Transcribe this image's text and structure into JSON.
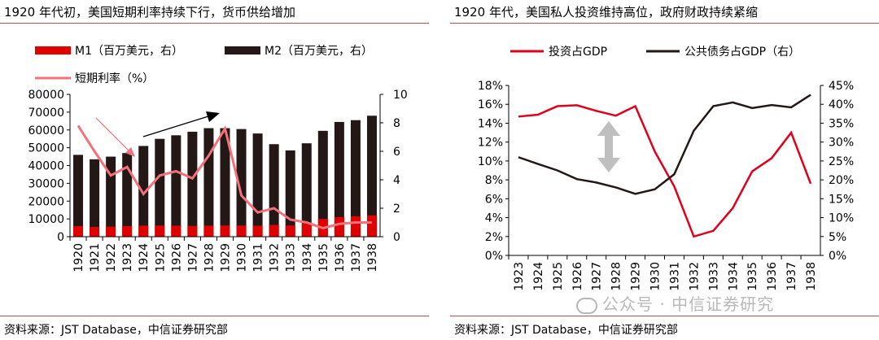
{
  "left": {
    "title": "1920 年代初，美国短期利率持续下行，货币供给增加",
    "source": "资料来源：JST Database，中信证券研究部"
  },
  "right": {
    "title": "1920 年代，美国私人投资维持高位，政府财政持续紧缩",
    "source": "资料来源：JST Database，中信证券研究部"
  },
  "watermark": "公众号 · 中信证券研究",
  "chart_data": [
    {
      "type": "bar",
      "title": "1920 年代初，美国短期利率持续下行，货币供给增加",
      "categories": [
        "1920",
        "1921",
        "1922",
        "1923",
        "1924",
        "1925",
        "1926",
        "1927",
        "1928",
        "1929",
        "1930",
        "1931",
        "1932",
        "1933",
        "1934",
        "1935",
        "1936",
        "1937",
        "1938"
      ],
      "series": [
        {
          "name": "M1（百万美元，右）",
          "axis": "left",
          "color": "#e00000",
          "values": [
            6000,
            5500,
            5700,
            6000,
            6200,
            6300,
            6200,
            6100,
            6200,
            6300,
            6300,
            6200,
            6600,
            6300,
            7500,
            10000,
            11000,
            11500,
            12000
          ]
        },
        {
          "name": "M2（百万美元，右）",
          "axis": "left",
          "color": "#231815",
          "values": [
            46000,
            43500,
            45000,
            47000,
            51000,
            55000,
            57000,
            59000,
            61000,
            61000,
            60500,
            58000,
            52000,
            48500,
            52500,
            59500,
            64500,
            65500,
            68000
          ]
        },
        {
          "name": "短期利率（%）",
          "type": "line",
          "axis": "right",
          "color": "#f4707a",
          "values": [
            7.8,
            6.0,
            4.3,
            4.9,
            3.0,
            4.3,
            4.6,
            4.1,
            5.7,
            7.6,
            2.9,
            1.7,
            2.0,
            1.2,
            1.0,
            0.6,
            0.9,
            1.0,
            1.0
          ]
        }
      ],
      "ylim_left": [
        0,
        80000
      ],
      "yticks_left": [
        "0",
        "10000",
        "20000",
        "30000",
        "40000",
        "50000",
        "60000",
        "70000",
        "80000"
      ],
      "ylim_right": [
        0,
        10
      ],
      "yticks_right": [
        "0",
        "2",
        "4",
        "6",
        "8",
        "10"
      ],
      "legend": [
        "M1（百万美元，右）",
        "M2（百万美元，右）",
        "短期利率（%）"
      ],
      "legend_position": "top",
      "grid": false
    },
    {
      "type": "line",
      "title": "1920 年代，美国私人投资维持高位，政府财政持续紧缩",
      "categories": [
        "1923",
        "1924",
        "1925",
        "1926",
        "1927",
        "1928",
        "1929",
        "1930",
        "1931",
        "1932",
        "1933",
        "1934",
        "1935",
        "1936",
        "1937",
        "1938"
      ],
      "series": [
        {
          "name": "投资占GDP",
          "axis": "left",
          "color": "#e0001b",
          "values": [
            14.7,
            14.9,
            15.8,
            15.9,
            15.3,
            14.8,
            15.8,
            11.0,
            7.3,
            2.0,
            2.6,
            5.0,
            8.9,
            10.3,
            13.0,
            7.6
          ]
        },
        {
          "name": "公共债务占GDP（右）",
          "axis": "right",
          "color": "#231815",
          "values": [
            26.0,
            24.2,
            22.5,
            20.2,
            19.3,
            18.0,
            16.3,
            17.5,
            21.5,
            33.0,
            39.5,
            40.5,
            39.0,
            39.8,
            39.2,
            42.5
          ]
        }
      ],
      "ylim_left": [
        0,
        18
      ],
      "yticks_left": [
        "0%",
        "2%",
        "4%",
        "6%",
        "8%",
        "10%",
        "12%",
        "14%",
        "16%",
        "18%"
      ],
      "ylim_right": [
        0,
        45
      ],
      "yticks_right": [
        "0%",
        "5%",
        "10%",
        "15%",
        "20%",
        "25%",
        "30%",
        "35%",
        "40%",
        "45%"
      ],
      "legend": [
        "投资占GDP",
        "公共债务占GDP（右）"
      ],
      "legend_position": "top",
      "grid": false
    }
  ]
}
